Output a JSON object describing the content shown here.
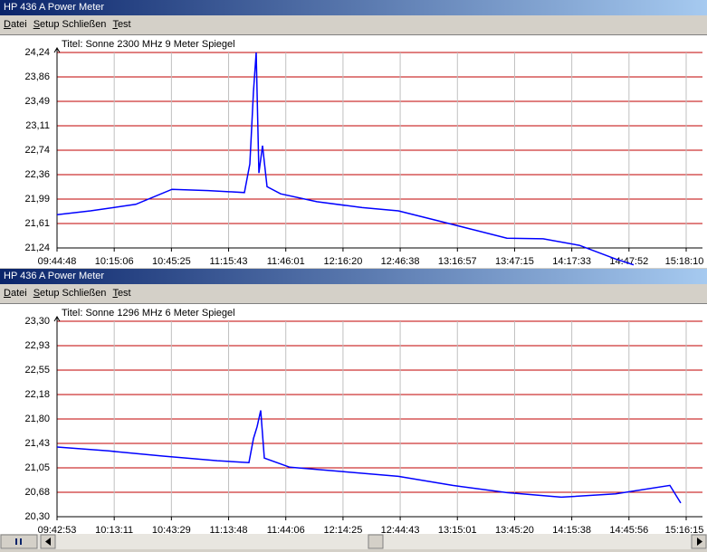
{
  "windows": [
    {
      "title": "HP 436 A Power Meter",
      "menu": [
        "Datei",
        "Setup Schließen",
        "Test"
      ]
    },
    {
      "title": "HP 436 A Power Meter",
      "menu": [
        "Datei",
        "Setup Schließen",
        "Test"
      ]
    }
  ],
  "chart_data": [
    {
      "type": "line",
      "title": "Titel: Sonne 2300 MHz 9 Meter Spiegel",
      "color": "#0000ff",
      "grid": true,
      "x": [
        "09:44:48",
        "10:02:33",
        "10:26:32",
        "10:45:43",
        "11:04:54",
        "11:24:05",
        "11:26:58",
        "11:28:53",
        "11:30:20",
        "11:31:46",
        "11:33:41",
        "11:36:05",
        "11:43:17",
        "12:02:28",
        "12:26:27",
        "12:45:38",
        "13:04:49",
        "13:24:00",
        "13:43:11",
        "14:02:23",
        "14:21:34",
        "14:40:45",
        "14:50:21"
      ],
      "values": [
        21.75,
        21.81,
        21.91,
        22.14,
        22.12,
        22.09,
        22.53,
        23.64,
        24.24,
        22.39,
        22.81,
        22.18,
        22.07,
        21.95,
        21.86,
        21.81,
        21.67,
        21.53,
        21.39,
        21.38,
        21.28,
        21.07,
        20.98
      ],
      "xlim": [
        "09:44:48",
        "15:18:10"
      ],
      "xticks": [
        "09:44:48",
        "10:15:06",
        "10:45:25",
        "11:15:43",
        "11:46:01",
        "12:16:20",
        "12:46:38",
        "13:16:57",
        "13:47:15",
        "14:17:33",
        "14:47:52",
        "15:18:10"
      ],
      "ylim": [
        21.24,
        24.24
      ],
      "yticks": [
        {
          "value": 21.24,
          "label": "21,24"
        },
        {
          "value": 21.615,
          "label": "21,61"
        },
        {
          "value": 21.99,
          "label": "21,99"
        },
        {
          "value": 22.365,
          "label": "22,36"
        },
        {
          "value": 22.74,
          "label": "22,74"
        },
        {
          "value": 23.115,
          "label": "23,11"
        },
        {
          "value": 23.49,
          "label": "23,49"
        },
        {
          "value": 23.865,
          "label": "23,86"
        },
        {
          "value": 24.24,
          "label": "24,24"
        }
      ]
    },
    {
      "type": "line",
      "title": "Titel: Sonne 1296 MHz 6 Meter Spiegel",
      "color": "#0000ff",
      "grid": true,
      "x": [
        "09:42:53",
        "10:10:13",
        "10:39:00",
        "11:07:47",
        "11:24:34",
        "11:26:58",
        "11:28:53",
        "11:30:48",
        "11:32:43",
        "11:46:09",
        "12:14:56",
        "12:43:43",
        "13:12:30",
        "13:41:16",
        "14:10:03",
        "14:38:50",
        "15:07:37",
        "15:13:22"
      ],
      "values": [
        21.37,
        21.31,
        21.23,
        21.16,
        21.13,
        21.5,
        21.68,
        21.93,
        21.2,
        21.06,
        20.99,
        20.92,
        20.78,
        20.67,
        20.6,
        20.65,
        20.78,
        20.51
      ],
      "xlim": [
        "09:42:53",
        "15:16:15"
      ],
      "xticks": [
        "09:42:53",
        "10:13:11",
        "10:43:29",
        "11:13:48",
        "11:44:06",
        "12:14:25",
        "12:44:43",
        "13:15:01",
        "13:45:20",
        "14:15:38",
        "14:45:56",
        "15:16:15"
      ],
      "ylim": [
        20.3,
        23.3
      ],
      "yticks": [
        {
          "value": 20.3,
          "label": "20,30"
        },
        {
          "value": 20.675,
          "label": "20,68"
        },
        {
          "value": 21.05,
          "label": "21,05"
        },
        {
          "value": 21.425,
          "label": "21,43"
        },
        {
          "value": 21.8,
          "label": "21,80"
        },
        {
          "value": 22.175,
          "label": "22,18"
        },
        {
          "value": 22.55,
          "label": "22,55"
        },
        {
          "value": 22.925,
          "label": "22,93"
        },
        {
          "value": 23.3,
          "label": "23,30"
        }
      ]
    }
  ]
}
